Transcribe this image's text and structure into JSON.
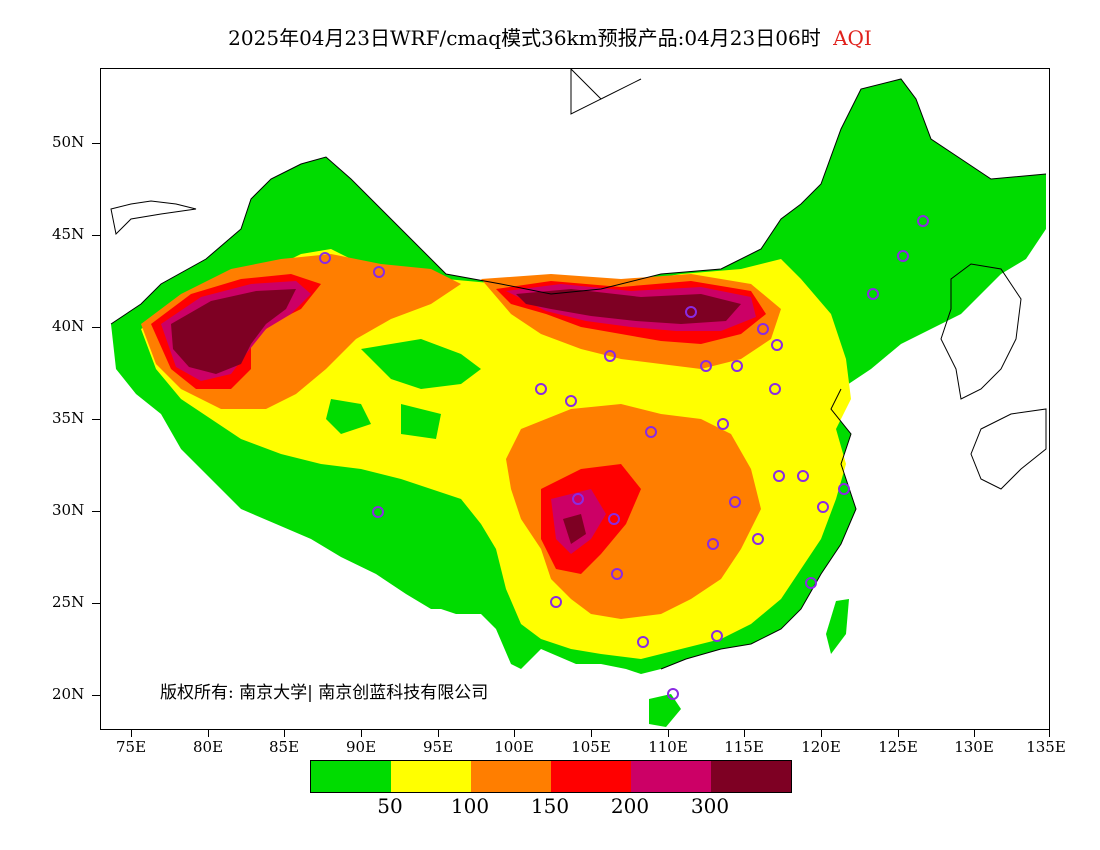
{
  "title": {
    "main": "2025年04月23日WRF/cmaq模式36km预报产品:04月23日06时",
    "variable": "AQI"
  },
  "copyright": "版权所有: 南京大学| 南京创蓝科技有限公司",
  "latitude_labels": [
    "50N",
    "45N",
    "40N",
    "35N",
    "30N",
    "25N",
    "20N"
  ],
  "longitude_labels": [
    "75E",
    "80E",
    "85E",
    "90E",
    "95E",
    "100E",
    "105E",
    "110E",
    "115E",
    "120E",
    "125E",
    "130E",
    "135E"
  ],
  "legend": {
    "colors": [
      "#00dc00",
      "#ffff00",
      "#ff7e00",
      "#ff0000",
      "#cc0066",
      "#7e0023"
    ],
    "labels": [
      "50",
      "100",
      "150",
      "200",
      "300"
    ]
  },
  "colors": {
    "ocean": "#ffffff",
    "border": "#000000",
    "station_marker": "#8a2be2",
    "title_accent": "#e0211c"
  }
}
